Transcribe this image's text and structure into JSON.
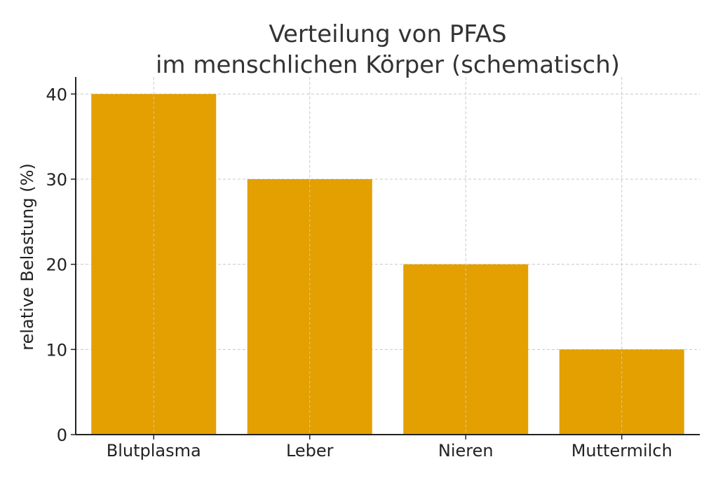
{
  "chart_data": {
    "type": "bar",
    "title_lines": [
      "Verteilung von PFAS",
      "im menschlichen Körper (schematisch)"
    ],
    "xlabel": "",
    "ylabel": "relative Belastung (%)",
    "categories": [
      "Blutplasma",
      "Leber",
      "Nieren",
      "Muttermilch"
    ],
    "values": [
      40,
      30,
      20,
      10
    ],
    "ylim": [
      0,
      42
    ],
    "yticks": [
      0,
      10,
      20,
      30,
      40
    ],
    "grid": true,
    "bar_color": "#e49f00",
    "legend": "none"
  }
}
